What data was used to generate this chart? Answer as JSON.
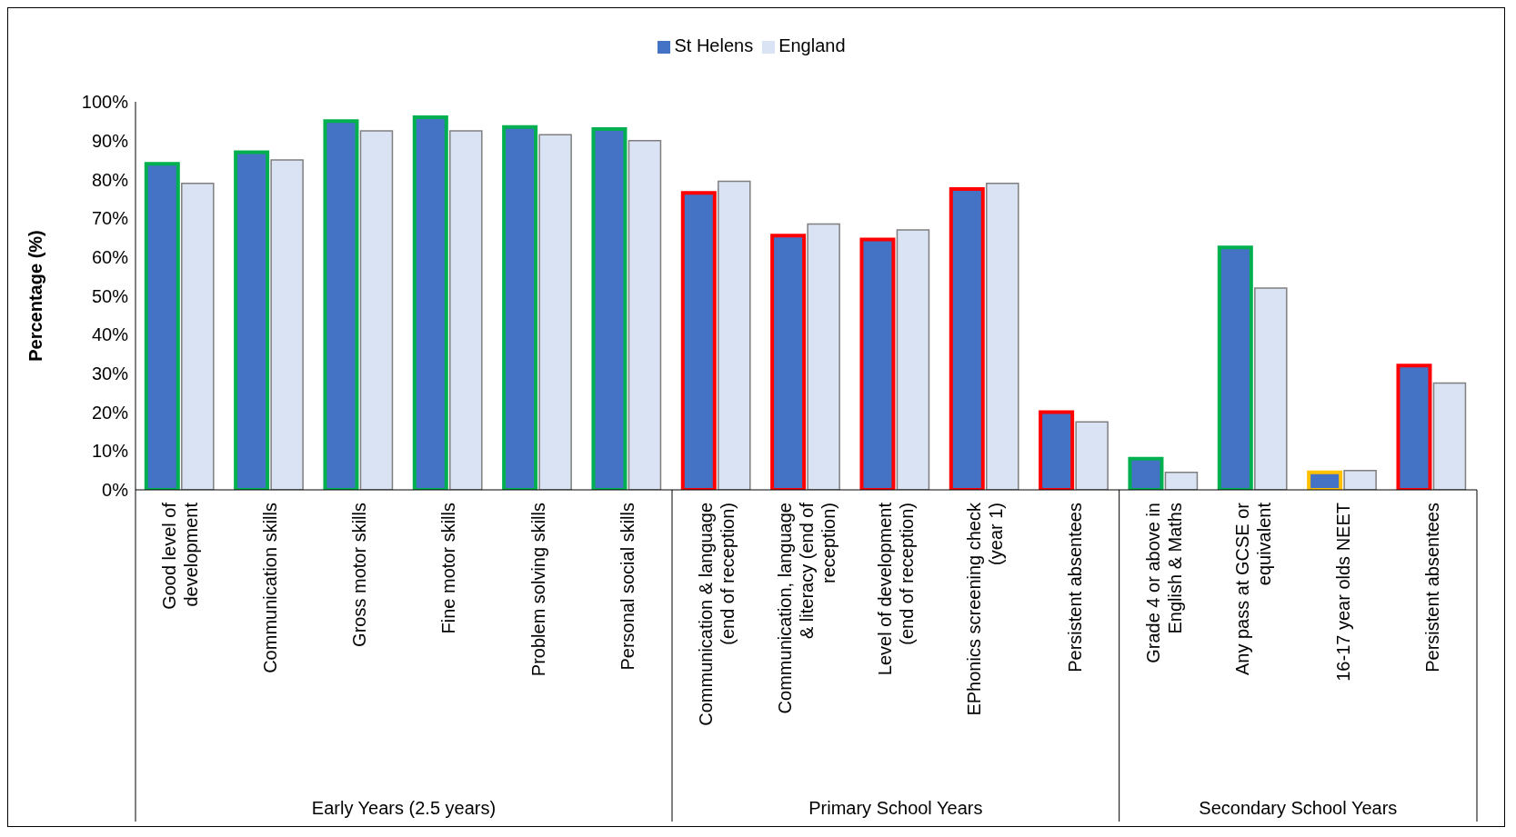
{
  "chart_data": {
    "type": "bar",
    "ylabel": "Percentage (%)",
    "categories": [
      "Good level of development",
      "Communication skills",
      "Gross motor skills",
      "Fine motor skills",
      "Problem solving skills",
      "Personal social skills",
      "Communication & language (end of reception)",
      "Communication, language & literacy (end of reception)",
      "Level of development (end of reception)",
      "EPhonics screening check (year 1)",
      "Persistent absentees",
      "Grade 4 or above in English & Maths",
      "Any pass at GCSE or equivalent",
      "16-17 year olds NEET",
      "Persistent absentees"
    ],
    "series": [
      {
        "name": "St Helens",
        "color": "#4472c4",
        "colors": [
          "#00b050",
          "#00b050",
          "#00b050",
          "#00b050",
          "#00b050",
          "#00b050",
          "#ff0000",
          "#ff0000",
          "#ff0000",
          "#ff0000",
          "#ff0000",
          "#00b050",
          "#00b050",
          "#ffc000",
          "#ff0000"
        ],
        "values": [
          84,
          87,
          95,
          96,
          93.5,
          93,
          76.5,
          65.5,
          64.5,
          77.5,
          20,
          8,
          62.5,
          4.5,
          32
        ]
      },
      {
        "name": "England",
        "color": "#dae3f3",
        "values": [
          79,
          85,
          92.5,
          92.5,
          91.5,
          90,
          79.5,
          68.5,
          67,
          79,
          17.5,
          4.5,
          52,
          5,
          27.5
        ]
      }
    ],
    "annotations": [
      "Early Years (2.5 years)",
      "Primary School Years",
      "Secondary School Years"
    ],
    "ylim": [
      0,
      100
    ],
    "yticks": [
      {
        "value": 0,
        "label": "0%"
      },
      {
        "value": 10,
        "label": "10%"
      },
      {
        "value": 20,
        "label": "20%"
      },
      {
        "value": 30,
        "label": "30%"
      },
      {
        "value": 40,
        "label": "40%"
      },
      {
        "value": 50,
        "label": "50%"
      },
      {
        "value": 60,
        "label": "60%"
      },
      {
        "value": 70,
        "label": "70%"
      },
      {
        "value": 80,
        "label": "80%"
      },
      {
        "value": 90,
        "label": "90%"
      },
      {
        "value": 100,
        "label": "100%"
      }
    ],
    "grid": false,
    "legend": "top"
  }
}
